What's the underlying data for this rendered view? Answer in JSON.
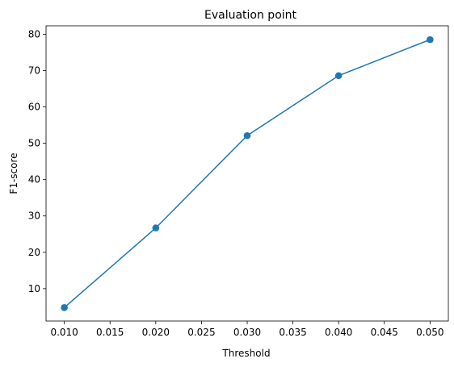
{
  "chart_data": {
    "type": "line",
    "title": "Evaluation point",
    "xlabel": "Threshold",
    "ylabel": "F1-score",
    "x": [
      0.01,
      0.02,
      0.03,
      0.04,
      0.05
    ],
    "series": [
      {
        "values": [
          4.8,
          26.7,
          52.1,
          68.6,
          78.5
        ]
      }
    ],
    "xlim": [
      0.008,
      0.052
    ],
    "ylim": [
      1.1,
      82.3
    ],
    "xticks": [
      0.01,
      0.015,
      0.02,
      0.025,
      0.03,
      0.035,
      0.04,
      0.045,
      0.05
    ],
    "xtick_labels": [
      "0.010",
      "0.015",
      "0.020",
      "0.025",
      "0.030",
      "0.035",
      "0.040",
      "0.045",
      "0.050"
    ],
    "yticks": [
      10,
      20,
      30,
      40,
      50,
      60,
      70,
      80
    ],
    "ytick_labels": [
      "10",
      "20",
      "30",
      "40",
      "50",
      "60",
      "70",
      "80"
    ],
    "grid": false,
    "line_color": "#1f77b4",
    "marker": "circle"
  }
}
